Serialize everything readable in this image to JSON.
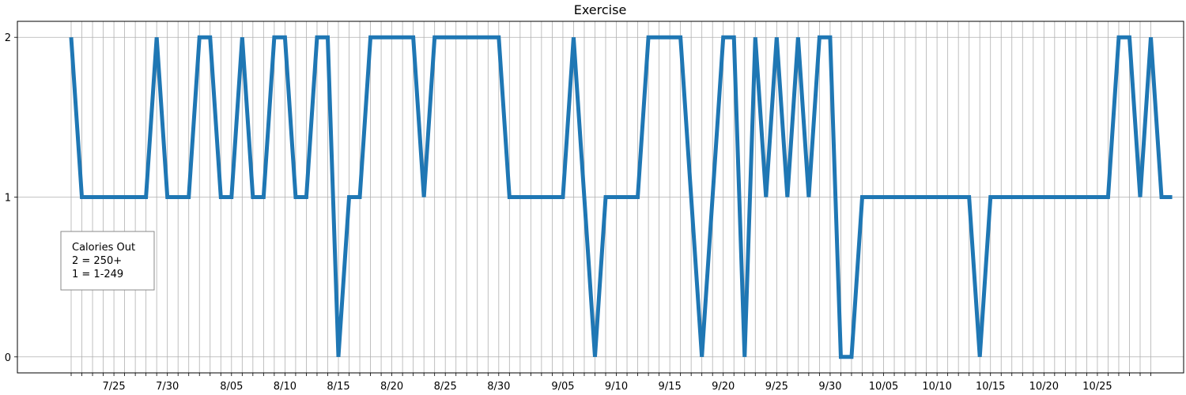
{
  "chart_data": {
    "type": "line",
    "title": "Exercise",
    "xlabel": "",
    "ylabel": "",
    "start_date": "2018-07-21",
    "end_date": "2018-10-30",
    "ylim": [
      -0.1,
      2.1
    ],
    "yticks": [
      0,
      1,
      2
    ],
    "grid": true,
    "x_tick_labels": [
      "7/25",
      "7/30",
      "8/05",
      "8/10",
      "8/15",
      "8/20",
      "8/25",
      "8/30",
      "9/05",
      "9/10",
      "9/15",
      "9/20",
      "9/25",
      "9/30",
      "10/05",
      "10/10",
      "10/15",
      "10/20",
      "10/25"
    ],
    "series": [
      {
        "name": "",
        "color": "#1f77b4",
        "values": [
          2,
          1,
          1,
          1,
          1,
          1,
          1,
          1,
          2,
          1,
          1,
          1,
          2,
          2,
          1,
          1,
          2,
          1,
          1,
          2,
          2,
          1,
          1,
          2,
          2,
          0,
          1,
          1,
          2,
          2,
          2,
          2,
          2,
          1,
          2,
          2,
          2,
          2,
          2,
          2,
          2,
          1,
          1,
          1,
          1,
          1,
          1,
          2,
          1,
          0,
          1,
          1,
          1,
          1,
          2,
          2,
          2,
          2,
          1,
          0,
          1,
          2,
          2,
          0,
          2,
          1,
          2,
          1,
          2,
          1,
          2,
          2,
          0,
          0,
          1,
          1,
          1,
          1,
          1,
          1,
          1,
          1,
          1,
          1,
          1,
          0,
          1,
          1,
          1,
          1,
          1,
          1,
          1,
          1,
          1,
          1,
          1,
          1,
          2,
          2,
          1,
          2,
          1,
          1
        ]
      }
    ],
    "annotation": {
      "title": "Calories Out",
      "lines": [
        "2 = 250+",
        "1 = 1-249"
      ]
    }
  }
}
